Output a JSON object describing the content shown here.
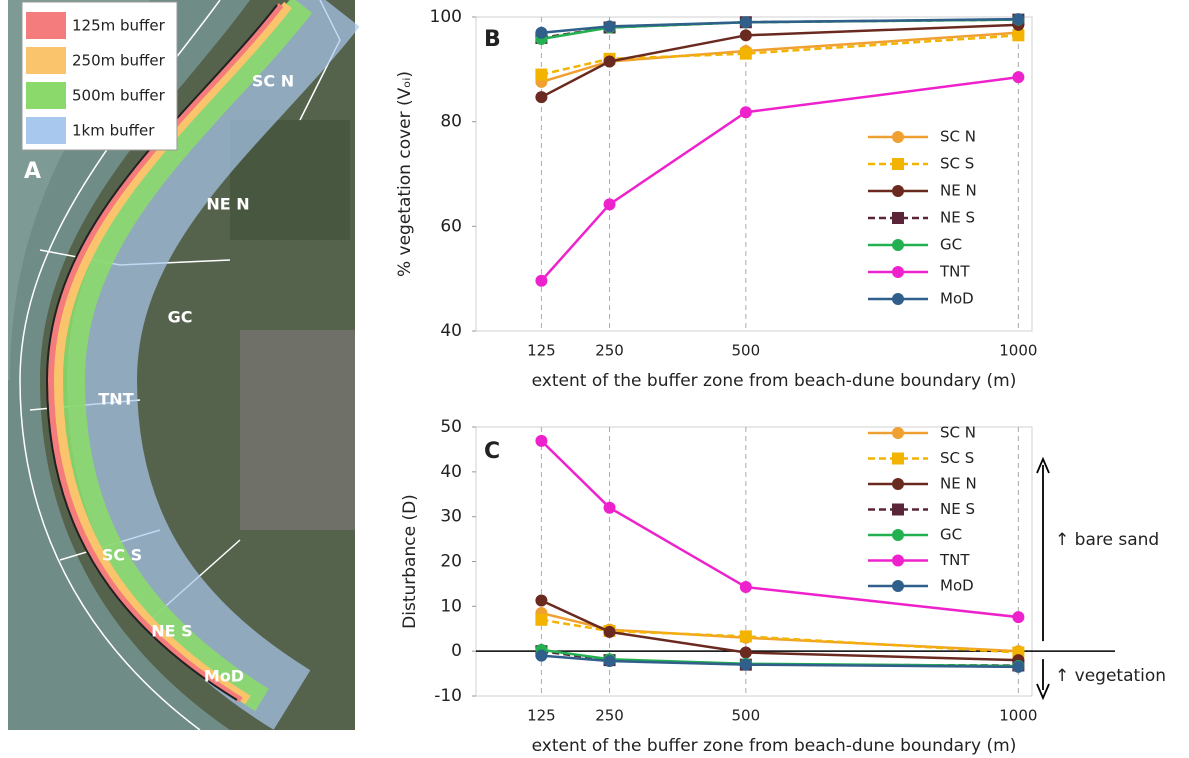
{
  "map": {
    "panel_label": "A",
    "legend": [
      {
        "label": "125m buffer",
        "color": "#f47c7c"
      },
      {
        "label": "250m buffer",
        "color": "#f9c46b"
      },
      {
        "label": "500m buffer",
        "color": "#8cd96b"
      },
      {
        "label": "1km buffer",
        "color": "#a9c8ee"
      }
    ],
    "regions": [
      "SC N",
      "NE N",
      "GC",
      "TNT",
      "SC S",
      "NE S",
      "MoD"
    ]
  },
  "chart_data": [
    {
      "type": "line",
      "panel_label": "B",
      "x_label": "extent of the buffer zone from beach-dune boundary (m)",
      "y_label": "% vegetation cover (Vₒᵢ)",
      "x": [
        125,
        250,
        500,
        1000
      ],
      "xlim": [
        5,
        1025
      ],
      "xticks": [
        125,
        250,
        500,
        1000
      ],
      "ylim": [
        40,
        100
      ],
      "yticks": [
        40,
        60,
        80,
        100
      ],
      "grid": "x",
      "series": [
        {
          "name": "SC N",
          "color": "#f0a030",
          "marker": "circle",
          "linestyle": "solid",
          "values": [
            87.6,
            91.5,
            93.5,
            97
          ]
        },
        {
          "name": "SC S",
          "color": "#f2b400",
          "marker": "square",
          "linestyle": "dashed",
          "values": [
            89,
            92,
            93,
            96.5
          ]
        },
        {
          "name": "NE N",
          "color": "#6b2a20",
          "marker": "circle",
          "linestyle": "solid",
          "values": [
            84.7,
            91.5,
            96.5,
            98.5
          ]
        },
        {
          "name": "NE S",
          "color": "#5a2538",
          "marker": "square",
          "linestyle": "dashed",
          "values": [
            96,
            98,
            99,
            99.5
          ]
        },
        {
          "name": "GC",
          "color": "#22b050",
          "marker": "circle",
          "linestyle": "solid",
          "values": [
            95.8,
            98,
            99,
            99.5
          ]
        },
        {
          "name": "TNT",
          "color": "#ee22cc",
          "marker": "circle",
          "linestyle": "solid",
          "values": [
            49.6,
            64.2,
            81.8,
            88.5
          ]
        },
        {
          "name": "MoD",
          "color": "#2f5f8a",
          "marker": "circle",
          "linestyle": "solid",
          "values": [
            97,
            98.2,
            99,
            99.6
          ]
        }
      ]
    },
    {
      "type": "line",
      "panel_label": "C",
      "x_label": "extent of the buffer zone from beach-dune boundary (m)",
      "y_label": "Disturbance (D)",
      "x": [
        125,
        250,
        500,
        1000
      ],
      "xlim": [
        5,
        1025
      ],
      "xticks": [
        125,
        250,
        500,
        1000
      ],
      "ylim": [
        -10,
        50
      ],
      "yticks": [
        -10,
        0,
        10,
        20,
        30,
        40,
        50
      ],
      "grid": "x",
      "hline": 0,
      "annotations": [
        "↑ bare sand",
        "↑ vegetation"
      ],
      "series": [
        {
          "name": "SC N",
          "color": "#f0a030",
          "marker": "circle",
          "linestyle": "solid",
          "values": [
            8.5,
            4.8,
            3,
            0
          ]
        },
        {
          "name": "SC S",
          "color": "#f2b400",
          "marker": "square",
          "linestyle": "dashed",
          "values": [
            7,
            4.5,
            3.3,
            -0.3
          ]
        },
        {
          "name": "NE N",
          "color": "#6b2a20",
          "marker": "circle",
          "linestyle": "solid",
          "values": [
            11.3,
            4.3,
            -0.3,
            -2
          ]
        },
        {
          "name": "NE S",
          "color": "#5a2538",
          "marker": "square",
          "linestyle": "dashed",
          "values": [
            0,
            -2,
            -3,
            -3.2
          ]
        },
        {
          "name": "GC",
          "color": "#22b050",
          "marker": "circle",
          "linestyle": "solid",
          "values": [
            0.3,
            -1.8,
            -2.8,
            -3.3
          ]
        },
        {
          "name": "TNT",
          "color": "#ee22cc",
          "marker": "circle",
          "linestyle": "solid",
          "values": [
            46.9,
            32,
            14.3,
            7.6
          ]
        },
        {
          "name": "MoD",
          "color": "#2f5f8a",
          "marker": "circle",
          "linestyle": "solid",
          "values": [
            -1,
            -2.2,
            -3,
            -3.5
          ]
        }
      ]
    }
  ]
}
